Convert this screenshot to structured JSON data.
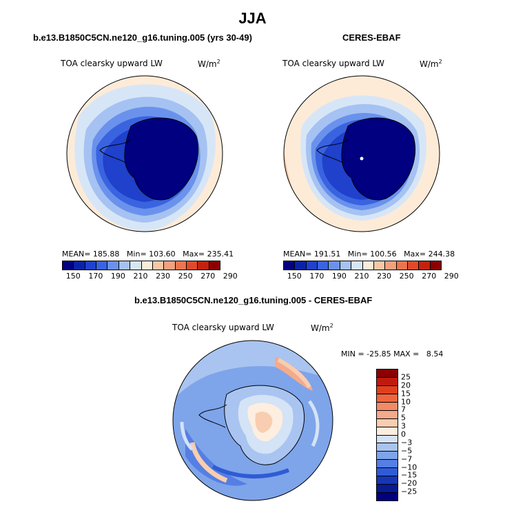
{
  "season": "JJA",
  "panels": {
    "model": {
      "title": "b.e13.B1850C5CN.ne120_g16.tuning.005 (yrs 30-49)",
      "field": "TOA clearsky upward LW",
      "units": "W/m",
      "units_exp": "2",
      "mean_label": "MEAN=",
      "mean": "185.88",
      "min_label": "Min=",
      "min": "103.60",
      "max_label": "Max=",
      "max": "235.41"
    },
    "obs": {
      "title": "CERES-EBAF",
      "field": "TOA clearsky upward LW",
      "units": "W/m",
      "units_exp": "2",
      "mean_label": "MEAN=",
      "mean": "191.51",
      "min_label": "Min=",
      "min": "100.56",
      "max_label": "Max=",
      "max": "244.38"
    },
    "diff": {
      "title": "b.e13.B1850C5CN.ne120_g16.tuning.005 - CERES-EBAF",
      "field": "TOA clearsky upward LW",
      "units": "W/m",
      "units_exp": "2",
      "minmax": "MIN = -25.85 MAX =   8.54"
    }
  },
  "colorbar_abs": {
    "ticks": [
      "150",
      "170",
      "190",
      "210",
      "230",
      "250",
      "270",
      "290"
    ],
    "colors": [
      "#000080",
      "#0a22a8",
      "#1f41cc",
      "#3a63e0",
      "#6a92ec",
      "#a5c2f2",
      "#d7e6f7",
      "#fdebd8",
      "#f7c7a6",
      "#f3a07d",
      "#ec7550",
      "#e04a2a",
      "#c2220e",
      "#8b0000"
    ]
  },
  "colorbar_diff": {
    "ticks": [
      "25",
      "20",
      "15",
      "10",
      "7",
      "5",
      "3",
      "0",
      "−3",
      "−5",
      "−7",
      "−10",
      "−15",
      "−20",
      "−25"
    ],
    "colors": [
      "#8b0000",
      "#c01a10",
      "#e0401e",
      "#ef6540",
      "#f28a66",
      "#f4aa8c",
      "#f8cdb0",
      "#fdeedf",
      "#d4e3f6",
      "#a9c4f0",
      "#7ea4ea",
      "#557fe2",
      "#2f5bd6",
      "#1636b6",
      "#081a94",
      "#000080"
    ]
  }
}
